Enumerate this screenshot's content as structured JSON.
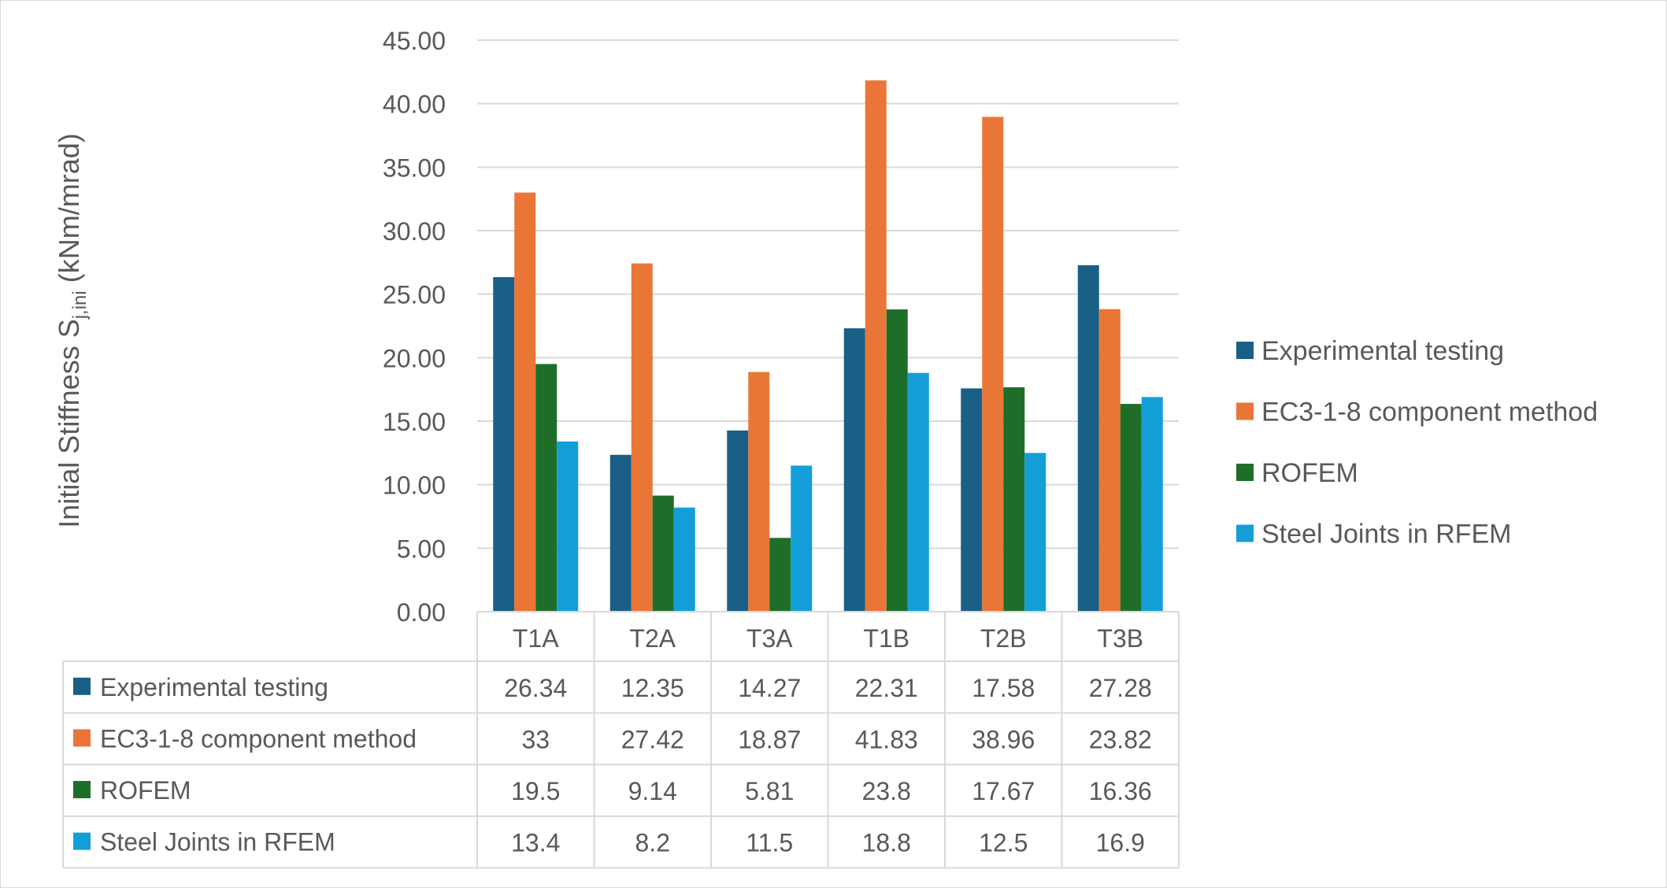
{
  "chart_data": {
    "type": "bar",
    "title": "",
    "xlabel": "",
    "ylabel": {
      "prefix": "Initial Stiffness S",
      "subscript": "j,ini",
      "suffix": " (kNm/mrad)"
    },
    "ylim": [
      0,
      45
    ],
    "ytick_step": 5,
    "ytick_labels": [
      "0.00",
      "5.00",
      "10.00",
      "15.00",
      "20.00",
      "25.00",
      "30.00",
      "35.00",
      "40.00",
      "45.00"
    ],
    "grid": true,
    "legend_position": "right",
    "data_table": true,
    "categories": [
      "T1A",
      "T2A",
      "T3A",
      "T1B",
      "T2B",
      "T3B"
    ],
    "series": [
      {
        "name": "Experimental testing",
        "color": "#1a5f86",
        "values": [
          26.34,
          12.35,
          14.27,
          22.31,
          17.58,
          27.28
        ],
        "labels": [
          "26.34",
          "12.35",
          "14.27",
          "22.31",
          "17.58",
          "27.28"
        ]
      },
      {
        "name": "EC3-1-8 component method",
        "color": "#e97636",
        "values": [
          33,
          27.42,
          18.87,
          41.83,
          38.96,
          23.82
        ],
        "labels": [
          "33",
          "27.42",
          "18.87",
          "41.83",
          "38.96",
          "23.82"
        ]
      },
      {
        "name": "ROFEM",
        "color": "#1e6e2a",
        "values": [
          19.5,
          9.14,
          5.81,
          23.8,
          17.67,
          16.36
        ],
        "labels": [
          "19.5",
          "9.14",
          "5.81",
          "23.8",
          "17.67",
          "16.36"
        ]
      },
      {
        "name": "Steel Joints in RFEM",
        "color": "#139ed8",
        "values": [
          13.4,
          8.2,
          11.5,
          18.8,
          12.5,
          16.9
        ],
        "labels": [
          "13.4",
          "8.2",
          "11.5",
          "18.8",
          "12.5",
          "16.9"
        ]
      }
    ]
  }
}
